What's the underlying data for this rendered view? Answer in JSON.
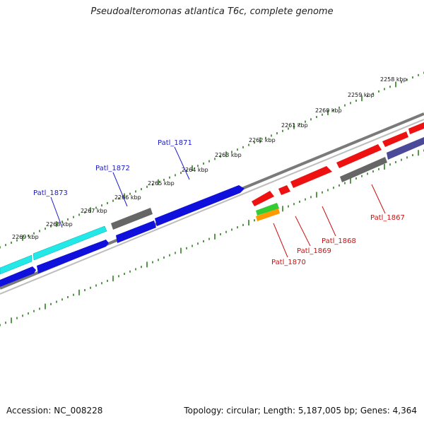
{
  "title": "Pseudoalteromonas atlantica T6c, complete genome",
  "footer": {
    "accession": "Accession: NC_008228",
    "summary": "Topology: circular; Length: 5,187,005 bp; Genes: 4,364"
  },
  "colors": {
    "backbone": "#7a7a7a",
    "tick": "#2e7d1f",
    "forward_label": "#1a1acc",
    "reverse_label": "#cc1111",
    "blue": "#1010dd",
    "cyan": "#22e8e8",
    "gray": "#666666",
    "red": "#ee1111",
    "navy": "#4a4a99",
    "green": "#33cc33",
    "orange": "#ff9900"
  },
  "scale_labels": [
    "2258 kbp",
    "2259 kbp",
    "2260 kbp",
    "2261 kbp",
    "2262 kbp",
    "2263 kbp",
    "2264 kbp",
    "2265 kbp",
    "2266 kbp",
    "2267 kbp",
    "2268 kbp",
    "2269 kbp"
  ],
  "gene_labels": [
    "Patl_1873",
    "Patl_1872",
    "Patl_1871",
    "Patl_1870",
    "Patl_1869",
    "Patl_1868",
    "Patl_1867"
  ]
}
